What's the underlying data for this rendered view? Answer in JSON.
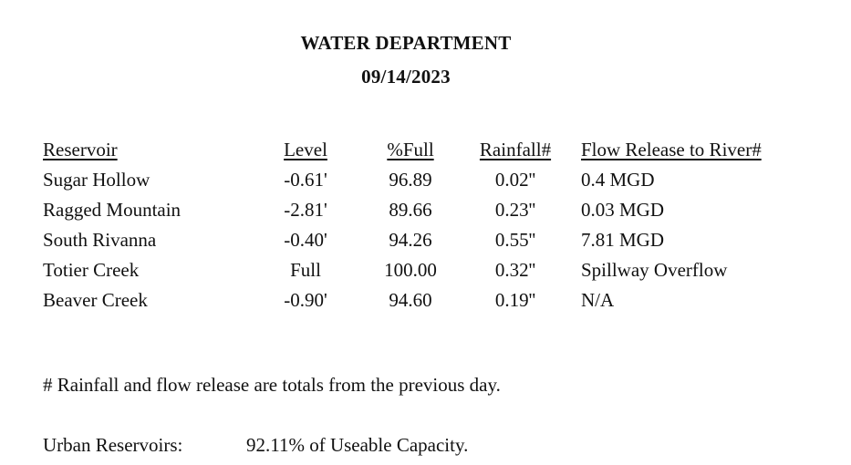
{
  "header": {
    "title": "WATER DEPARTMENT",
    "date": "09/14/2023"
  },
  "table": {
    "columns": {
      "reservoir": "Reservoir",
      "level": "Level",
      "pct_full": "%Full",
      "rainfall": "Rainfall#",
      "flow": "Flow Release to River#"
    },
    "rows": [
      {
        "reservoir": "Sugar Hollow",
        "level": "-0.61'",
        "pct_full": "96.89",
        "rainfall": "0.02''",
        "flow": "0.4 MGD"
      },
      {
        "reservoir": "Ragged Mountain",
        "level": "-2.81'",
        "pct_full": "89.66",
        "rainfall": "0.23''",
        "flow": "0.03 MGD"
      },
      {
        "reservoir": "South Rivanna",
        "level": "-0.40'",
        "pct_full": "94.26",
        "rainfall": "0.55''",
        "flow": "7.81 MGD"
      },
      {
        "reservoir": "Totier Creek",
        "level": "Full",
        "pct_full": "100.00",
        "rainfall": "0.32''",
        "flow": "Spillway Overflow"
      },
      {
        "reservoir": "Beaver Creek",
        "level": "-0.90'",
        "pct_full": "94.60",
        "rainfall": "0.19''",
        "flow": "N/A"
      }
    ]
  },
  "footnote": "# Rainfall and flow release are totals from the previous day.",
  "urban": {
    "label": "Urban Reservoirs:",
    "value": "92.11% of Useable Capacity."
  }
}
